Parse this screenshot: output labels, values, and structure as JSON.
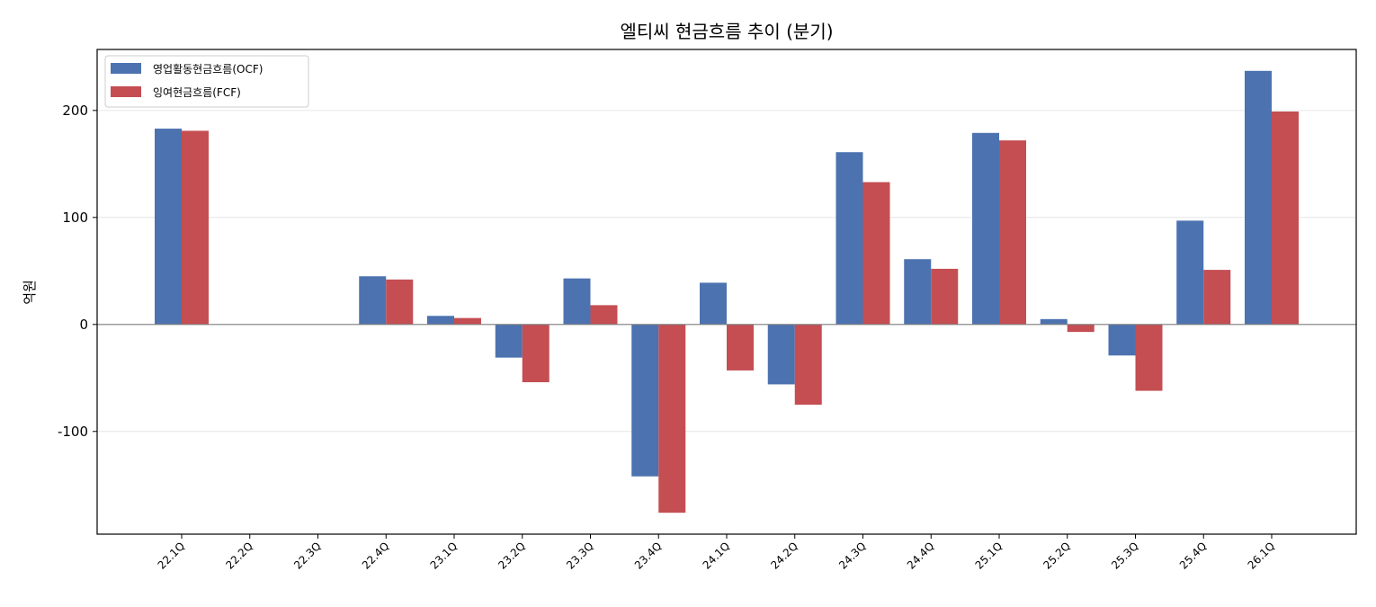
{
  "chart_data": {
    "type": "bar",
    "title": "엘티씨 현금흐름 추이 (분기)",
    "xlabel": "",
    "ylabel": "억원",
    "categories": [
      "22.1Q",
      "22.2Q",
      "22.3Q",
      "22.4Q",
      "23.1Q",
      "23.2Q",
      "23.3Q",
      "23.4Q",
      "24.1Q",
      "24.2Q",
      "24.3Q",
      "24.4Q",
      "25.1Q",
      "25.2Q",
      "25.3Q",
      "25.4Q",
      "26.1Q"
    ],
    "series": [
      {
        "name": "영업활동현금흐름(OCF)",
        "color": "#4c72b0",
        "values": [
          183,
          0,
          0,
          45,
          8,
          -31,
          43,
          -142,
          39,
          -56,
          161,
          61,
          179,
          5,
          -29,
          97,
          237
        ]
      },
      {
        "name": "잉여현금흐름(FCF)",
        "color": "#c44e52",
        "values": [
          181,
          0,
          0,
          42,
          6,
          -54,
          18,
          -176,
          -43,
          -75,
          133,
          52,
          172,
          -7,
          -62,
          51,
          199
        ]
      }
    ],
    "ylim": [
      -196,
      257
    ],
    "yticks": [
      -100,
      0,
      100,
      200
    ],
    "ytick_labels": [
      "-100",
      "0",
      "100",
      "200"
    ],
    "grid": true,
    "legend_position": "top-left"
  }
}
